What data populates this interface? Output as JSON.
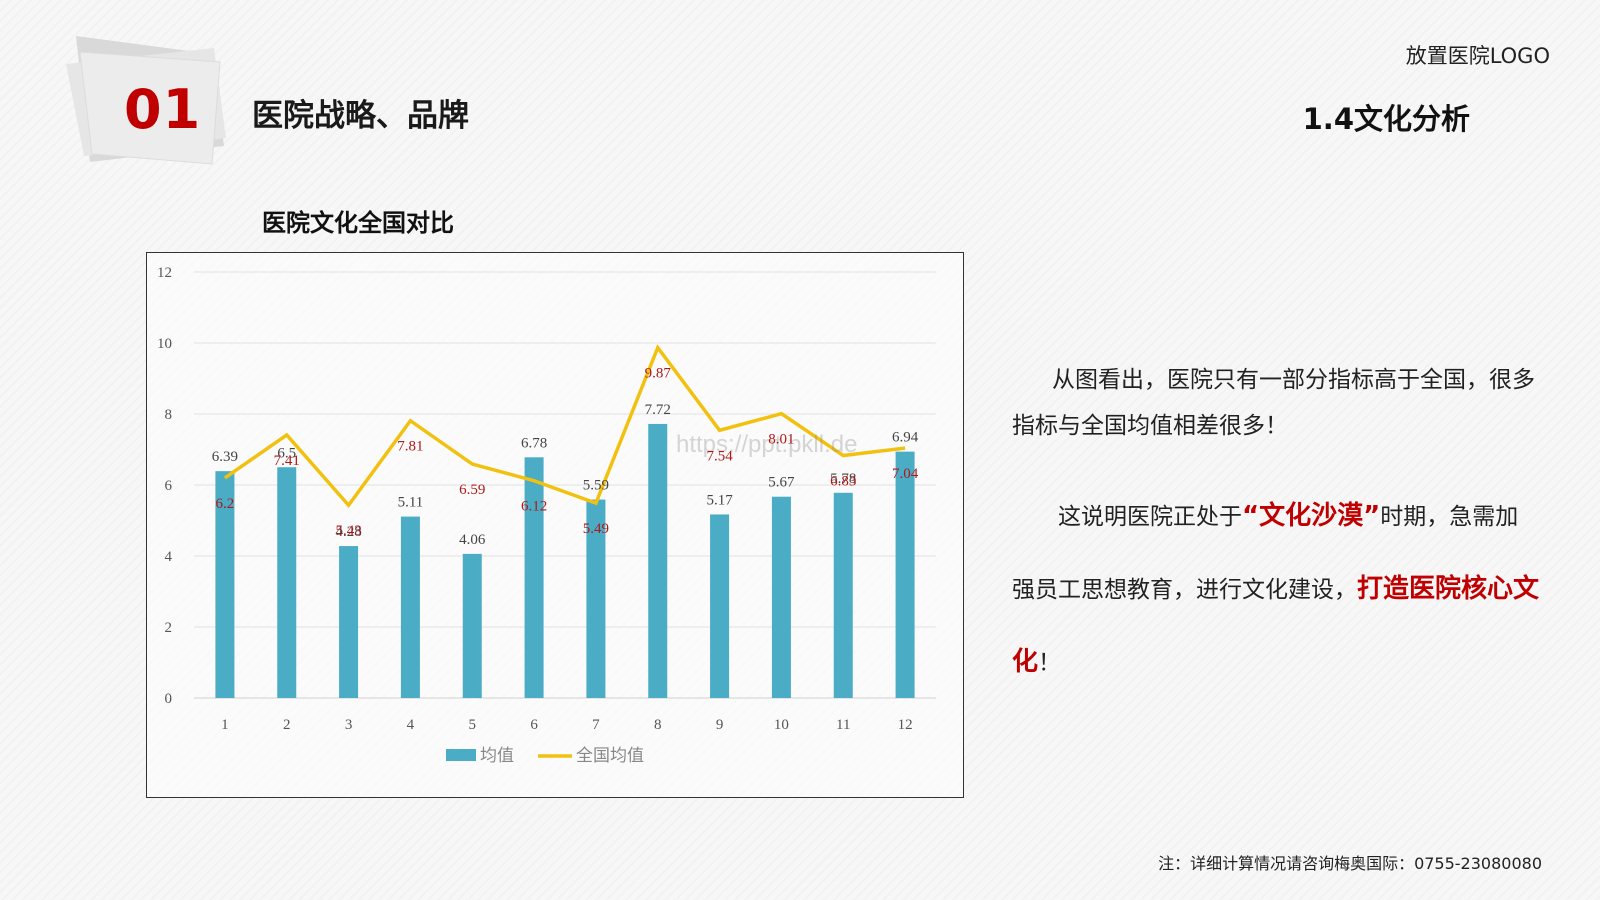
{
  "header": {
    "section_number": "01",
    "section_title": "医院战略、品牌",
    "logo_placeholder": "放置医院LOGO",
    "subsection_title": "1.4文化分析"
  },
  "chart_title": "医院文化全国对比",
  "chart_data": {
    "type": "bar+line",
    "categories": [
      "1",
      "2",
      "3",
      "4",
      "5",
      "6",
      "7",
      "8",
      "9",
      "10",
      "11",
      "12"
    ],
    "series": [
      {
        "name": "均值",
        "type": "bar",
        "color": "#4bacc6",
        "values": [
          6.39,
          6.5,
          4.28,
          5.11,
          4.06,
          6.78,
          5.59,
          7.72,
          5.17,
          5.67,
          5.78,
          6.94
        ],
        "labels": [
          "6.39",
          "6.5",
          "4.28",
          "5.11",
          "4.06",
          "6.78",
          "5.59",
          "7.72",
          "5.17",
          "5.67",
          "5.78",
          "6.94"
        ]
      },
      {
        "name": "全国均值",
        "type": "line",
        "color": "#f2c10f",
        "values": [
          6.2,
          7.41,
          5.43,
          7.81,
          6.59,
          6.12,
          5.49,
          9.87,
          7.54,
          8.01,
          6.83,
          7.04
        ],
        "labels": [
          "6.2",
          "7.41",
          "5.43",
          "7.81",
          "6.59",
          "6.12",
          "5.49",
          "9.87",
          "7.54",
          "8.01",
          "6.83",
          "7.04"
        ]
      }
    ],
    "y_ticks": [
      "0",
      "2",
      "4",
      "6",
      "8",
      "10",
      "12"
    ],
    "ylim": [
      0,
      12
    ],
    "grid": true,
    "legend": "bottom",
    "watermark": "https://ppt.pkll.de"
  },
  "analysis": {
    "p1": "从图看出，医院只有一部分指标高于全国，很多指标与全国均值相差很多！",
    "p2_pre": "这说明医院正处于",
    "p2_em1": "“文化沙漠”",
    "p2_mid": "时期，急需加强员工思想教育，进行文化建设，",
    "p2_em2": "打造医院核心文化",
    "p2_end": "！",
    "accent_color": "#c00000"
  },
  "footnote": "注：详细计算情况请咨询梅奥国际：0755-23080080"
}
